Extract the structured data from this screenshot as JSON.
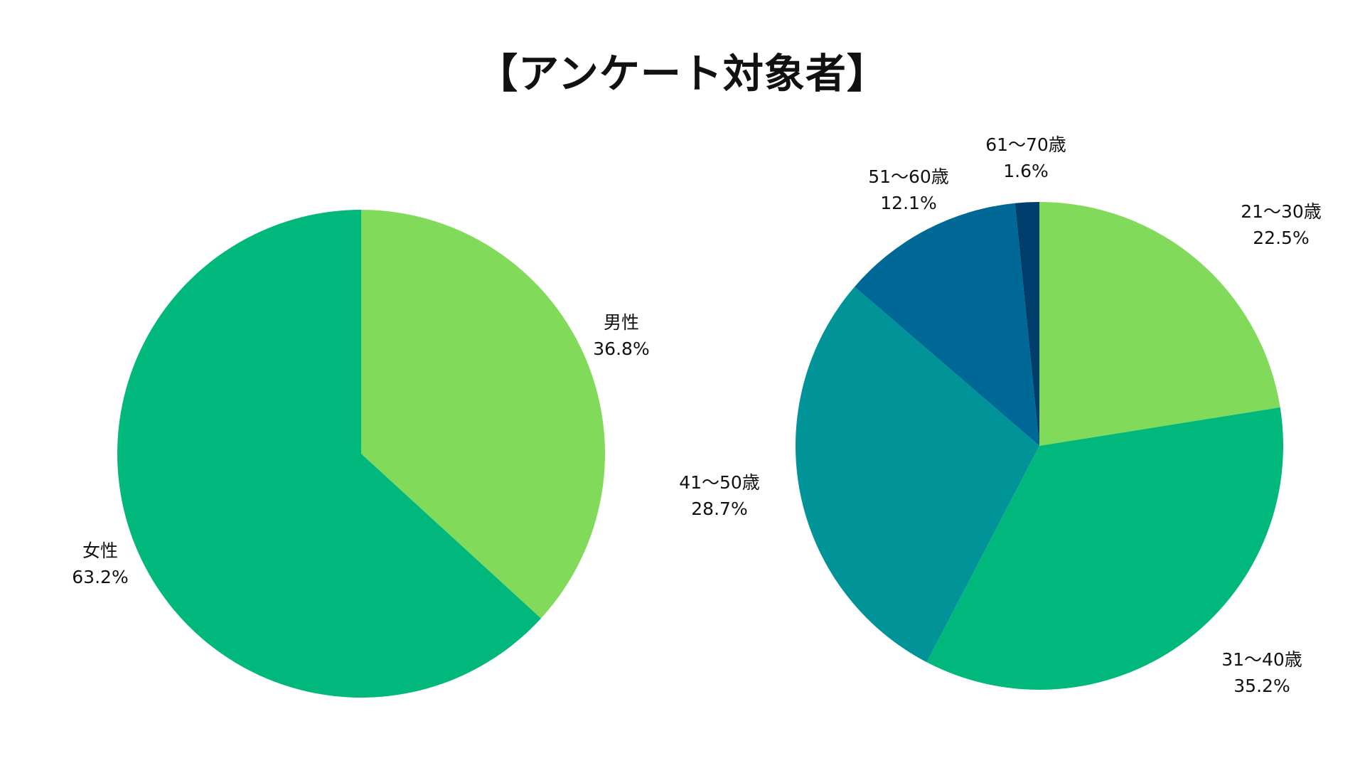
{
  "title": "【アンケート対象者】",
  "chart_data": [
    {
      "type": "pie",
      "title": "",
      "start_angle_deg": 0,
      "direction": "clockwise",
      "slices": [
        {
          "label": "男性",
          "value": 36.8,
          "display": "36.8%",
          "color": "#82DA5A"
        },
        {
          "label": "女性",
          "value": 63.2,
          "display": "63.2%",
          "color": "#00B87C"
        }
      ]
    },
    {
      "type": "pie",
      "title": "",
      "start_angle_deg": 0,
      "direction": "clockwise",
      "slices": [
        {
          "label": "21〜30歳",
          "value": 22.5,
          "display": "22.5%",
          "color": "#82DA5A"
        },
        {
          "label": "31〜40歳",
          "value": 35.2,
          "display": "35.2%",
          "color": "#00B87C"
        },
        {
          "label": "41〜50歳",
          "value": 28.7,
          "display": "28.7%",
          "color": "#009498"
        },
        {
          "label": "51〜60歳",
          "value": 12.1,
          "display": "12.1%",
          "color": "#006896"
        },
        {
          "label": "61〜70歳",
          "value": 1.6,
          "display": "1.6%",
          "color": "#003F6B"
        }
      ]
    }
  ]
}
